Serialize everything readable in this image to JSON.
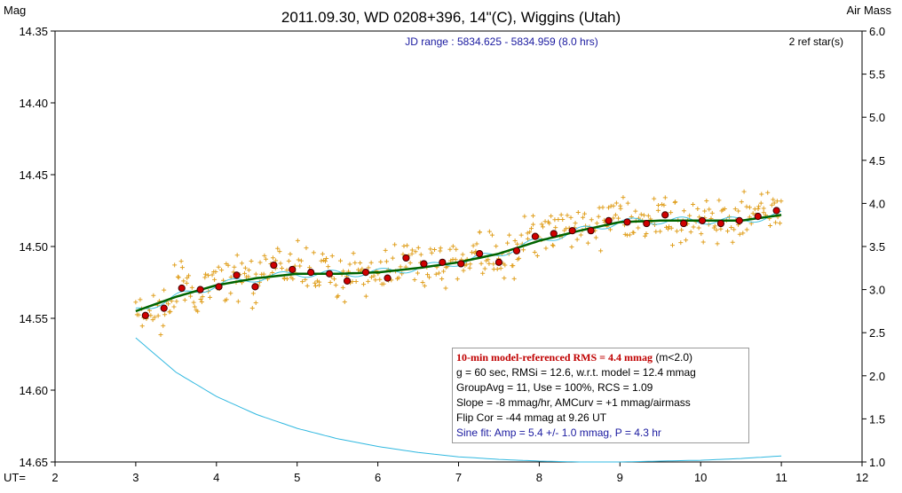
{
  "chart_data": {
    "type": "scatter",
    "title": "2011.09.30, WD 0208+396, 14\"(C), Wiggins (Utah)",
    "ylabel_left": "Mag",
    "ylabel_right": "Air Mass",
    "xlabel": "UT=",
    "subtitle": "JD range : 5834.625 - 5834.959 (8.0 hrs)",
    "ref_stars": "2 ref star(s)",
    "xlim": [
      2,
      12
    ],
    "ylim_left": [
      14.35,
      14.65
    ],
    "ylim_right": [
      1.0,
      6.0
    ],
    "y_inverted": true,
    "x_ticks": [
      "2",
      "3",
      "4",
      "5",
      "6",
      "7",
      "8",
      "9",
      "10",
      "11",
      "12"
    ],
    "y_ticks_left": [
      "14.35",
      "14.40",
      "14.45",
      "14.50",
      "14.55",
      "14.60",
      "14.65"
    ],
    "y_ticks_right": [
      "6.0",
      "5.5",
      "5.0",
      "4.5",
      "4.0",
      "3.5",
      "3.0",
      "2.5",
      "2.0",
      "1.5",
      "1.0"
    ],
    "colors": {
      "raw": "#e0a020",
      "group": "#d00000",
      "model": "#006400",
      "sine": "#40c0e0",
      "airmass": "#30b8e0"
    },
    "series": [
      {
        "name": "group averages",
        "x": [
          3.12,
          3.35,
          3.57,
          3.8,
          4.03,
          4.25,
          4.48,
          4.71,
          4.94,
          5.17,
          5.4,
          5.62,
          5.85,
          6.12,
          6.35,
          6.57,
          6.8,
          7.03,
          7.26,
          7.5,
          7.72,
          7.95,
          8.18,
          8.41,
          8.64,
          8.86,
          9.09,
          9.33,
          9.56,
          9.79,
          10.02,
          10.25,
          10.48,
          10.71,
          10.94
        ],
        "y": [
          14.548,
          14.543,
          14.529,
          14.53,
          14.528,
          14.52,
          14.528,
          14.513,
          14.516,
          14.518,
          14.519,
          14.524,
          14.518,
          14.522,
          14.508,
          14.512,
          14.511,
          14.512,
          14.505,
          14.511,
          14.503,
          14.493,
          14.491,
          14.489,
          14.489,
          14.482,
          14.483,
          14.484,
          14.478,
          14.484,
          14.482,
          14.484,
          14.482,
          14.479,
          14.475
        ]
      },
      {
        "name": "model",
        "x": [
          3.0,
          3.5,
          4.0,
          4.5,
          5.0,
          5.5,
          6.0,
          6.5,
          7.0,
          7.5,
          8.0,
          8.5,
          9.0,
          9.5,
          10.0,
          10.5,
          11.0
        ],
        "y": [
          14.545,
          14.535,
          14.527,
          14.522,
          14.519,
          14.519,
          14.518,
          14.515,
          14.511,
          14.505,
          14.496,
          14.489,
          14.483,
          14.482,
          14.482,
          14.482,
          14.478
        ]
      },
      {
        "name": "air mass",
        "x": [
          3.0,
          3.5,
          4.0,
          4.5,
          5.0,
          5.5,
          6.0,
          6.5,
          7.0,
          7.5,
          8.0,
          8.5,
          9.0,
          9.5,
          10.0,
          10.5,
          11.0
        ],
        "y": [
          2.44,
          2.04,
          1.76,
          1.55,
          1.39,
          1.27,
          1.18,
          1.11,
          1.06,
          1.03,
          1.01,
          1.0,
          1.0,
          1.01,
          1.02,
          1.04,
          1.07
        ]
      }
    ]
  },
  "legend": {
    "line1_red": "10-min model-referenced RMS = 4.4 mmag",
    "line1_tail": " (m<2.0)",
    "line2": "g = 60 sec, RMSi = 12.6, w.r.t. model = 12.4 mmag",
    "line3": "GroupAvg = 11, Use = 100%, RCS = 1.09",
    "line4": "Slope = -8 mmag/hr, AMCurv = +1 mmag/airmass",
    "line5": "Flip Cor = -44 mmag at 9.26 UT",
    "line6": "Sine fit: Amp = 5.4 +/- 1.0 mmag, P = 4.3 hr"
  }
}
